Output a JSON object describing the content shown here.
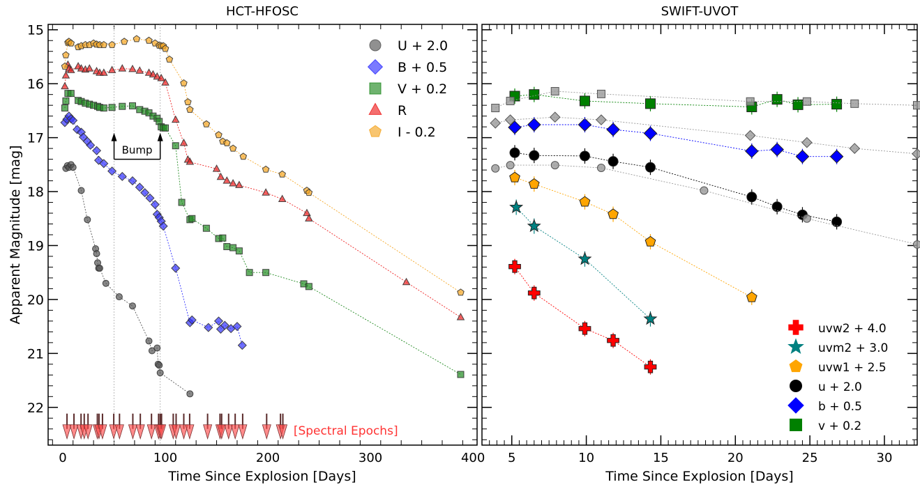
{
  "chart_data": [
    {
      "type": "scatter",
      "title": "HCT-HFOSC",
      "xlabel": "Time Since Explosion [Days]",
      "ylabel": "Apparent Magnitude [mag]",
      "xlim": [
        -14.3,
        404
      ],
      "ylim": [
        22.7,
        14.9
      ],
      "y_inverted": true,
      "xticks": [
        0,
        100,
        200,
        300,
        400
      ],
      "xtick_labels": [
        "0",
        "100",
        "200",
        "300",
        "400"
      ],
      "yticks": [
        15,
        16,
        17,
        18,
        19,
        20,
        21,
        22
      ],
      "ytick_labels": [
        "15",
        "16",
        "17",
        "18",
        "19",
        "20",
        "21",
        "22"
      ],
      "legend": {
        "position": "top-right",
        "entries": [
          "U + 2.0",
          "B + 0.5",
          "V + 0.2",
          "R",
          "I - 0.2"
        ]
      },
      "vlines": [
        50,
        95
      ],
      "annotation": {
        "text": "Bump",
        "x_range": [
          50,
          95
        ],
        "y": 17.4
      },
      "spectral_epochs": {
        "label": "[Spectral Epochs]",
        "y": 22.4,
        "days": [
          4.1,
          10.9,
          17.8,
          20.9,
          24.6,
          33.7,
          35.3,
          38.7,
          49.7,
          55.3,
          68.3,
          75.6,
          86.5,
          93.4,
          95.0,
          96.3,
          107.7,
          110.5,
          118.0,
          123.7,
          141.2,
          153.3,
          154.9,
          161.7,
          168.1,
          175.4,
          198.8,
          212.3,
          214.6
        ]
      },
      "series": [
        {
          "name": "U + 2.0",
          "marker": "circle",
          "color": "#555555",
          "x": [
            3,
            4.5,
            6,
            8,
            10,
            18,
            24,
            32,
            33,
            34,
            35,
            36,
            42,
            55,
            68,
            84,
            87,
            92,
            93,
            94,
            95,
            124
          ],
          "y": [
            17.57,
            17.52,
            17.55,
            17.5,
            17.55,
            17.98,
            18.52,
            19.06,
            19.15,
            19.32,
            19.42,
            19.42,
            19.7,
            19.95,
            20.12,
            20.77,
            20.95,
            20.9,
            21.2,
            21.22,
            21.36,
            21.75
          ]
        },
        {
          "name": "B + 0.5",
          "marker": "diamond",
          "color": "#3333ff",
          "x": [
            2,
            4,
            6,
            8,
            10,
            14,
            18,
            20,
            24,
            27,
            33,
            35,
            40,
            48,
            58,
            68,
            75,
            80,
            85,
            90,
            92,
            94,
            96,
            98,
            110,
            124,
            126,
            142,
            152,
            154,
            158,
            164,
            170,
            175
          ],
          "y": [
            16.72,
            16.66,
            16.6,
            16.65,
            16.68,
            16.85,
            16.9,
            16.99,
            17.07,
            17.14,
            17.24,
            17.42,
            17.48,
            17.62,
            17.72,
            17.8,
            17.92,
            18.02,
            18.12,
            18.24,
            18.42,
            18.48,
            18.55,
            18.64,
            19.42,
            20.43,
            20.38,
            20.52,
            20.4,
            20.55,
            20.48,
            20.54,
            20.5,
            20.85
          ]
        },
        {
          "name": "V + 0.2",
          "marker": "square",
          "color": "#228b22",
          "x": [
            2,
            3,
            5,
            8,
            15,
            18,
            22,
            26,
            30,
            34,
            36,
            40,
            48,
            58,
            68,
            75,
            80,
            84,
            88,
            92,
            94,
            96,
            98,
            100,
            110,
            116,
            124,
            126,
            140,
            152,
            156,
            160,
            166,
            172,
            182,
            198,
            235,
            240,
            388
          ],
          "y": [
            16.45,
            16.32,
            16.18,
            16.18,
            16.31,
            16.33,
            16.36,
            16.38,
            16.4,
            16.42,
            16.44,
            16.45,
            16.44,
            16.42,
            16.41,
            16.48,
            16.51,
            16.54,
            16.6,
            16.64,
            16.7,
            16.8,
            16.82,
            16.82,
            17.15,
            18.2,
            18.52,
            18.5,
            18.68,
            18.87,
            18.86,
            19.02,
            19.04,
            19.1,
            19.5,
            19.5,
            19.71,
            19.76,
            21.39
          ]
        },
        {
          "name": "R",
          "marker": "triangle",
          "color": "#ee2222",
          "x": [
            2,
            3,
            5,
            6,
            8,
            15,
            18,
            22,
            26,
            33,
            36,
            40,
            48,
            58,
            68,
            75,
            84,
            88,
            92,
            96,
            100,
            110,
            118,
            122,
            124,
            150,
            154,
            160,
            166,
            172,
            198,
            214,
            238,
            240,
            335,
            388
          ],
          "y": [
            16.05,
            15.85,
            15.65,
            15.72,
            15.75,
            15.68,
            15.72,
            15.74,
            15.72,
            15.77,
            15.8,
            15.8,
            15.75,
            15.72,
            15.73,
            15.76,
            15.8,
            15.83,
            15.87,
            15.9,
            15.98,
            16.67,
            17.1,
            17.41,
            17.45,
            17.58,
            17.73,
            17.8,
            17.85,
            17.88,
            18.02,
            18.14,
            18.4,
            18.5,
            19.68,
            20.33
          ]
        },
        {
          "name": "I - 0.2",
          "marker": "pentagon",
          "color": "#f5a623",
          "x": [
            2,
            3,
            5,
            6,
            8,
            15,
            18,
            22,
            26,
            30,
            33,
            36,
            40,
            48,
            60,
            72,
            84,
            90,
            94,
            96,
            98,
            100,
            104,
            118,
            122,
            124,
            140,
            152,
            156,
            160,
            166,
            176,
            198,
            214,
            238,
            240,
            388
          ],
          "y": [
            15.68,
            15.47,
            15.24,
            15.22,
            15.25,
            15.32,
            15.3,
            15.28,
            15.28,
            15.25,
            15.27,
            15.28,
            15.28,
            15.28,
            15.22,
            15.17,
            15.2,
            15.25,
            15.29,
            15.3,
            15.3,
            15.35,
            15.55,
            15.99,
            16.34,
            16.48,
            16.75,
            16.95,
            17.07,
            17.1,
            17.2,
            17.35,
            17.59,
            17.68,
            17.98,
            18.02,
            19.87
          ]
        }
      ]
    },
    {
      "type": "scatter",
      "title": "SWIFT-UVOT",
      "xlabel": "Time Since Explosion [Days]",
      "ylabel": "",
      "xlim": [
        3.0,
        32.2
      ],
      "ylim": [
        22.7,
        14.9
      ],
      "y_inverted": true,
      "xticks": [
        5,
        10,
        15,
        20,
        25,
        30
      ],
      "xtick_labels": [
        "5",
        "10",
        "15",
        "20",
        "25",
        "30"
      ],
      "legend": {
        "position": "bottom-right",
        "entries": [
          "uvw2 + 4.0",
          "uvm2 + 3.0",
          "uvw1 + 2.5",
          "u + 2.0",
          "b + 0.5",
          "v + 0.2"
        ]
      },
      "series": [
        {
          "name": "uvw2 + 4.0",
          "marker": "plus",
          "color": "#ff0000",
          "x": [
            5.2,
            6.5,
            9.9,
            11.8,
            14.3
          ],
          "y": [
            19.39,
            19.88,
            20.54,
            20.76,
            21.25
          ]
        },
        {
          "name": "uvm2 + 3.0",
          "marker": "star",
          "color": "#008080",
          "x": [
            5.3,
            6.5,
            9.9,
            14.3
          ],
          "y": [
            18.29,
            18.64,
            19.25,
            20.36
          ]
        },
        {
          "name": "uvw1 + 2.5",
          "marker": "pentagon",
          "color": "#ffa500",
          "x": [
            5.2,
            6.5,
            9.9,
            11.8,
            14.3,
            21.1
          ],
          "y": [
            17.74,
            17.86,
            18.19,
            18.42,
            18.93,
            19.96
          ]
        },
        {
          "name": "u + 2.0",
          "marker": "circle",
          "color": "#000000",
          "x": [
            5.2,
            6.5,
            9.9,
            11.8,
            14.3,
            21.1,
            22.8,
            24.5,
            26.8
          ],
          "y": [
            17.28,
            17.33,
            17.34,
            17.44,
            17.55,
            18.1,
            18.28,
            18.43,
            18.56
          ]
        },
        {
          "name": "b + 0.5",
          "marker": "diamond",
          "color": "#0000ff",
          "x": [
            5.2,
            6.5,
            9.9,
            11.8,
            14.3,
            21.1,
            22.8,
            24.5,
            26.8
          ],
          "y": [
            16.81,
            16.76,
            16.76,
            16.85,
            16.92,
            17.25,
            17.22,
            17.35,
            17.35
          ]
        },
        {
          "name": "v + 0.2",
          "marker": "square",
          "color": "#008000",
          "x": [
            5.2,
            6.5,
            9.9,
            14.3,
            21.1,
            22.8,
            24.2,
            26.8
          ],
          "y": [
            16.23,
            16.2,
            16.32,
            16.37,
            16.43,
            16.29,
            16.39,
            16.38
          ]
        },
        {
          "name": "reference v",
          "marker": "square",
          "color": "#999999",
          "reference": true,
          "x": [
            3.9,
            4.9,
            7.9,
            11.0,
            21.0,
            24.8,
            28.0,
            32.2
          ],
          "y": [
            16.45,
            16.32,
            16.14,
            16.19,
            16.33,
            16.33,
            16.37,
            16.4
          ]
        },
        {
          "name": "reference b",
          "marker": "diamond",
          "color": "#999999",
          "reference": true,
          "x": [
            3.9,
            4.9,
            7.9,
            11.0,
            21.0,
            24.8,
            28.0,
            32.2
          ],
          "y": [
            16.73,
            16.67,
            16.62,
            16.67,
            16.96,
            17.09,
            17.2,
            17.3
          ]
        },
        {
          "name": "reference u",
          "marker": "circle",
          "color": "#999999",
          "reference": true,
          "x": [
            3.9,
            4.9,
            7.9,
            11.0,
            17.9,
            24.8,
            32.2
          ],
          "y": [
            17.57,
            17.51,
            17.51,
            17.56,
            17.98,
            18.5,
            18.98
          ]
        }
      ]
    }
  ]
}
